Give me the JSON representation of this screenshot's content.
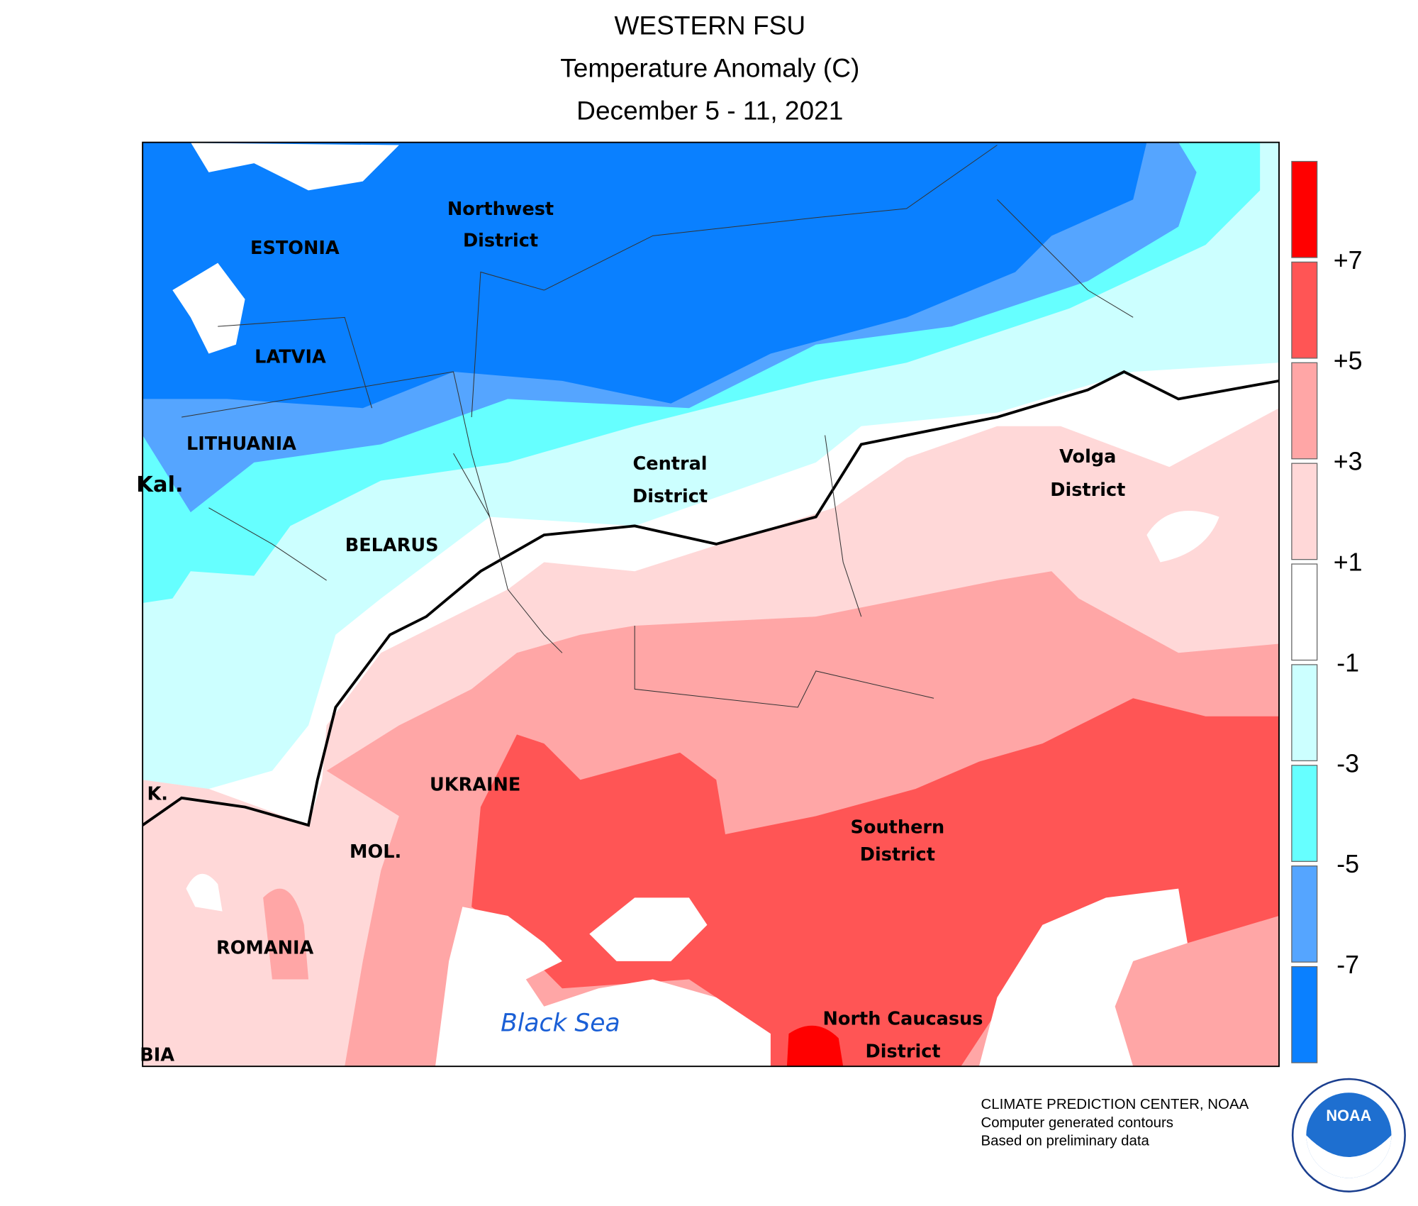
{
  "header": {
    "title": "WESTERN FSU",
    "subtitle": "Temperature Anomaly (C)",
    "dates": "December 5 - 11, 2021"
  },
  "map_labels": [
    "Northwest",
    "District",
    "ESTONIA",
    "LATVIA",
    "LITHUANIA",
    "Kal.",
    "BELARUS",
    "Central",
    "District",
    "Volga",
    "District",
    "UKRAINE",
    "MOL.",
    "ROMANIA",
    "Southern",
    "District",
    "North Caucasus",
    "District",
    "Black Sea",
    "K.",
    "BIA"
  ],
  "legend": {
    "colors": [
      "#ff0000",
      "#ff5555",
      "#ffa6a6",
      "#ffd8d8",
      "#ffffff",
      "#ccffff",
      "#66ffff",
      "#55a5ff",
      "#0a80ff"
    ],
    "labels": [
      "+7",
      "+5",
      "+3",
      "+1",
      "-1",
      "-3",
      "-5",
      "-7"
    ]
  },
  "footer": [
    "CLIMATE PREDICTION CENTER, NOAA",
    "Computer generated contours",
    "Based on preliminary data"
  ],
  "logo": "NOAA"
}
